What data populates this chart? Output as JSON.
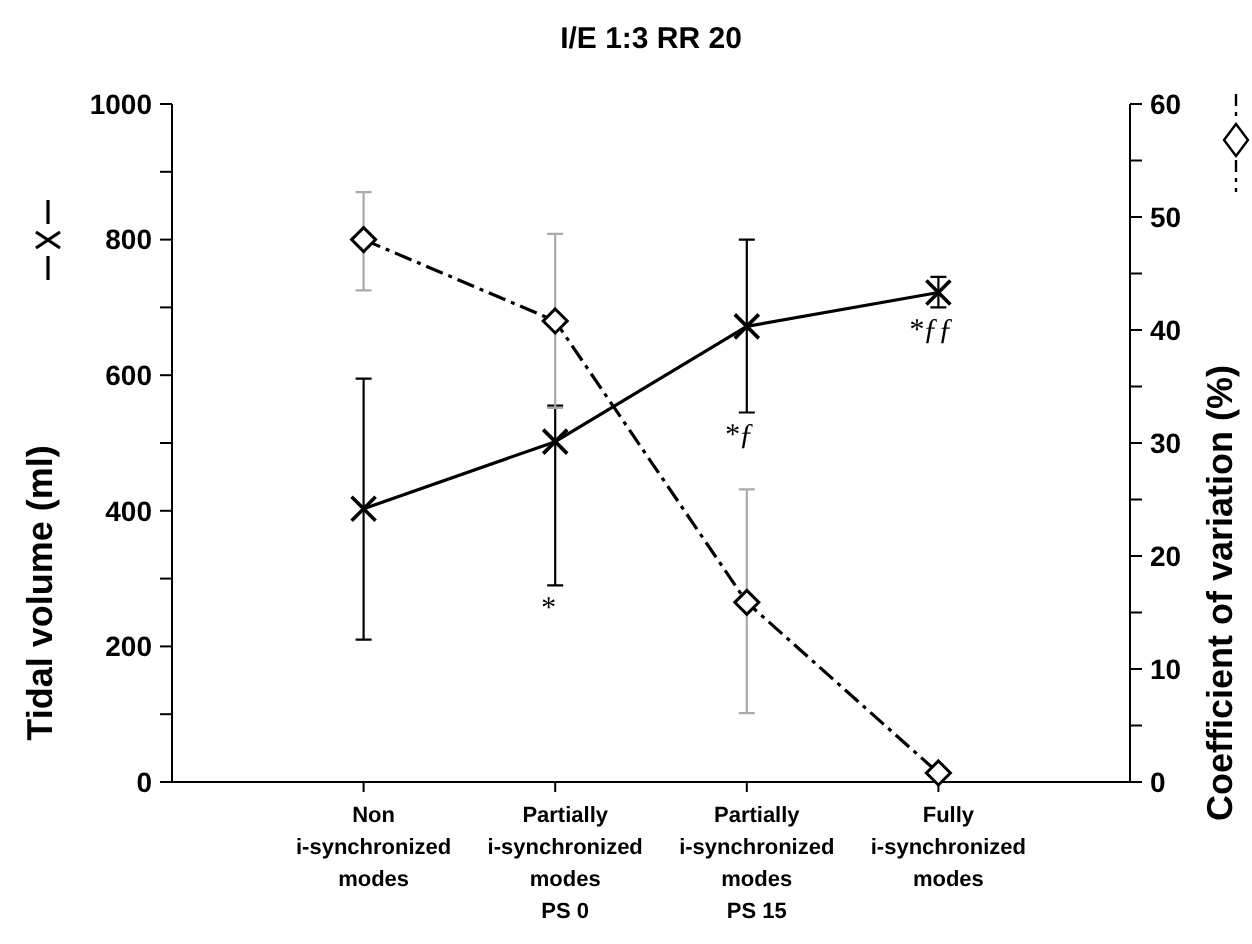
{
  "chart_data": {
    "type": "line",
    "title": "I/E 1:3  RR 20",
    "ylabel": "Tidal volume (ml)",
    "y2label": "Coefficient of variation (%)",
    "categories": [
      "Non\ni-synchronized\nmodes",
      "Partially\ni-synchronized\nmodes\nPS 0",
      "Partially\ni-synchronized\nmodes\nPS 15",
      "Fully\ni-synchronized\nmodes"
    ],
    "series": [
      {
        "color": "#000000",
        "marker": "cross",
        "line_style": "solid",
        "values": [
          403,
          502,
          672,
          722
        ],
        "errors": [
          [
            210,
            595
          ],
          [
            290,
            555
          ],
          [
            545,
            800
          ],
          [
            700,
            745
          ]
        ]
      },
      {
        "color": "#000000",
        "marker": "diamond",
        "line_style": "dashed",
        "axis": "y2",
        "values": [
          48,
          40.8,
          15.9,
          0.8
        ],
        "errors": [
          [
            43.5,
            52.2
          ],
          [
            33.1,
            48.5
          ],
          [
            6.1,
            25.9
          ],
          null
        ]
      }
    ],
    "ylim": [
      0,
      1000
    ],
    "yticks": [
      0,
      {
        "value": 100,
        "label": null
      },
      200,
      {
        "value": 300,
        "label": null
      },
      400,
      {
        "value": 500,
        "label": null
      },
      600,
      {
        "value": 700,
        "label": null
      },
      800,
      {
        "value": 900,
        "label": null
      },
      1000
    ],
    "y2lim": [
      0,
      60
    ],
    "y2ticks": [
      0,
      {
        "value": 5,
        "label": null
      },
      10,
      {
        "value": 15,
        "label": null
      },
      20,
      {
        "value": 25,
        "label": null
      },
      30,
      {
        "value": 35,
        "label": null
      },
      40,
      {
        "value": 45,
        "label": null
      },
      50,
      {
        "value": 55,
        "label": null
      },
      60
    ],
    "annotations": [
      "*",
      "*ƒ",
      "*ƒƒ"
    ],
    "grid": false
  }
}
